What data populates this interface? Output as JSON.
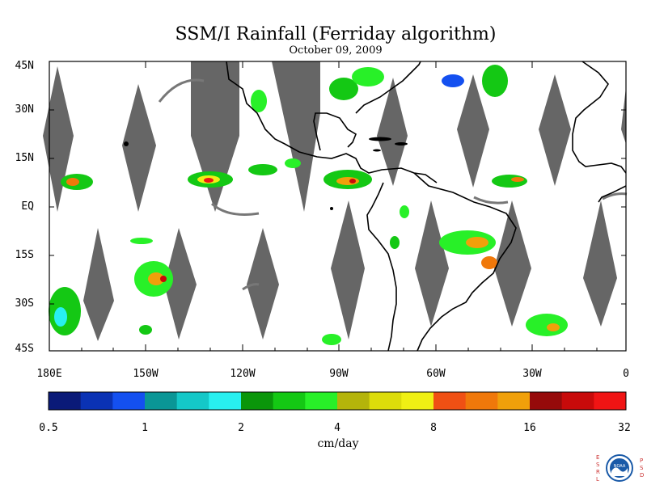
{
  "title": "SSM/I Rainfall (Ferriday algorithm)",
  "subtitle": "October 09, 2009",
  "lat_labels": [
    "45N",
    "30N",
    "15N",
    "EQ",
    "15S",
    "30S",
    "45S"
  ],
  "lon_labels": [
    "180E",
    "150W",
    "120W",
    "90W",
    "60W",
    "30W",
    "0"
  ],
  "colorbar": {
    "tick_labels": [
      "0.5",
      "1",
      "2",
      "4",
      "8",
      "16",
      "32"
    ],
    "unit": "cm/day",
    "colors": [
      "#0a1a78",
      "#0a32b4",
      "#1450f0",
      "#0a9696",
      "#14c8c8",
      "#28f0f0",
      "#0a960a",
      "#14c814",
      "#28f028",
      "#b4b40a",
      "#dcdc0a",
      "#f0f014",
      "#f05014",
      "#f0780a",
      "#f0a00a",
      "#960a0a",
      "#c80a0a",
      "#f01414"
    ]
  },
  "logo": {
    "left_letters": [
      "E",
      "S",
      "R",
      "L"
    ],
    "right_letters": [
      "P",
      "S",
      "D"
    ],
    "emblem_text": "NOAA"
  },
  "colors": {
    "swath_gap": "#666666",
    "coast": "#000000",
    "frame": "#000000"
  }
}
